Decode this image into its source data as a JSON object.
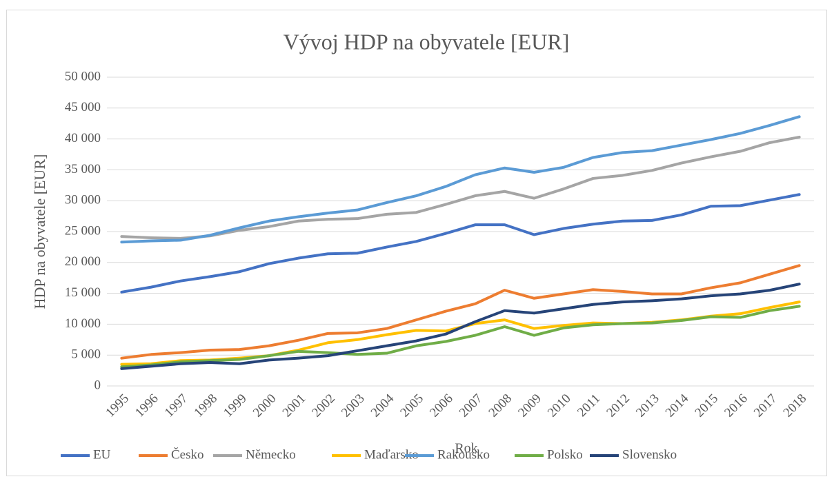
{
  "chart_data": {
    "type": "line",
    "title": "Vývoj HDP na obyvatele [EUR]",
    "x_label": "Rok",
    "y_label": "HDP na obyvatele [EUR]",
    "categories": [
      "1995",
      "1996",
      "1997",
      "1998",
      "1999",
      "2000",
      "2001",
      "2002",
      "2003",
      "2004",
      "2005",
      "2006",
      "2007",
      "2008",
      "2009",
      "2010",
      "2011",
      "2012",
      "2013",
      "2014",
      "2015",
      "2016",
      "2017",
      "2018"
    ],
    "series": [
      {
        "name": "EU",
        "color": "#4472c4",
        "values": [
          15200,
          16000,
          17000,
          17700,
          18500,
          19800,
          20700,
          21400,
          21500,
          22500,
          23400,
          24700,
          26100,
          26100,
          24500,
          25500,
          26200,
          26700,
          26800,
          27700,
          29100,
          29200,
          30100,
          31000
        ]
      },
      {
        "name": "Česko",
        "color": "#ed7d31",
        "values": [
          4500,
          5100,
          5400,
          5800,
          5900,
          6500,
          7400,
          8500,
          8600,
          9300,
          10700,
          12100,
          13300,
          15500,
          14200,
          14900,
          15600,
          15300,
          14900,
          14900,
          15900,
          16700,
          18100,
          19500
        ]
      },
      {
        "name": "Německo",
        "color": "#a5a5a5",
        "values": [
          24200,
          24000,
          23900,
          24300,
          25200,
          25800,
          26700,
          27000,
          27100,
          27800,
          28100,
          29400,
          30800,
          31500,
          30400,
          31900,
          33600,
          34100,
          34900,
          36100,
          37100,
          38000,
          39400,
          40300
        ]
      },
      {
        "name": "Maďarsko",
        "color": "#ffc000",
        "values": [
          3500,
          3600,
          4100,
          4200,
          4500,
          4900,
          5800,
          7000,
          7500,
          8300,
          9000,
          8900,
          10100,
          10700,
          9300,
          9800,
          10200,
          10100,
          10300,
          10700,
          11300,
          11700,
          12700,
          13600
        ]
      },
      {
        "name": "Rakousko",
        "color": "#5b9bd5",
        "values": [
          23300,
          23500,
          23600,
          24400,
          25600,
          26700,
          27400,
          28000,
          28500,
          29700,
          30800,
          32300,
          34200,
          35300,
          34600,
          35400,
          37000,
          37800,
          38100,
          39000,
          39900,
          40900,
          42200,
          43600
        ]
      },
      {
        "name": "Polsko",
        "color": "#70ad47",
        "values": [
          3100,
          3400,
          3900,
          4100,
          4300,
          4900,
          5600,
          5400,
          5100,
          5300,
          6500,
          7200,
          8200,
          9600,
          8200,
          9400,
          9900,
          10100,
          10200,
          10600,
          11200,
          11100,
          12200,
          12900
        ]
      },
      {
        "name": "Slovensko",
        "color": "#264478",
        "values": [
          2800,
          3200,
          3600,
          3800,
          3600,
          4200,
          4500,
          4900,
          5700,
          6500,
          7300,
          8400,
          10400,
          12200,
          11800,
          12500,
          13200,
          13600,
          13800,
          14100,
          14600,
          14900,
          15500,
          16500
        ]
      }
    ],
    "ylim": [
      0,
      50000
    ],
    "yticks": [
      0,
      {
        "value": 5000,
        "label": "5 000"
      },
      {
        "value": 10000,
        "label": "10 000"
      },
      {
        "value": 15000,
        "label": "15 000"
      },
      {
        "value": 20000,
        "label": "20 000"
      },
      {
        "value": 25000,
        "label": "25 000"
      },
      {
        "value": 30000,
        "label": "30 000"
      },
      {
        "value": 35000,
        "label": "35 000"
      },
      {
        "value": 40000,
        "label": "40 000"
      },
      {
        "value": 45000,
        "label": "45 000"
      },
      {
        "value": 50000,
        "label": "50 000"
      }
    ],
    "grid": true,
    "legend": "bottom"
  }
}
